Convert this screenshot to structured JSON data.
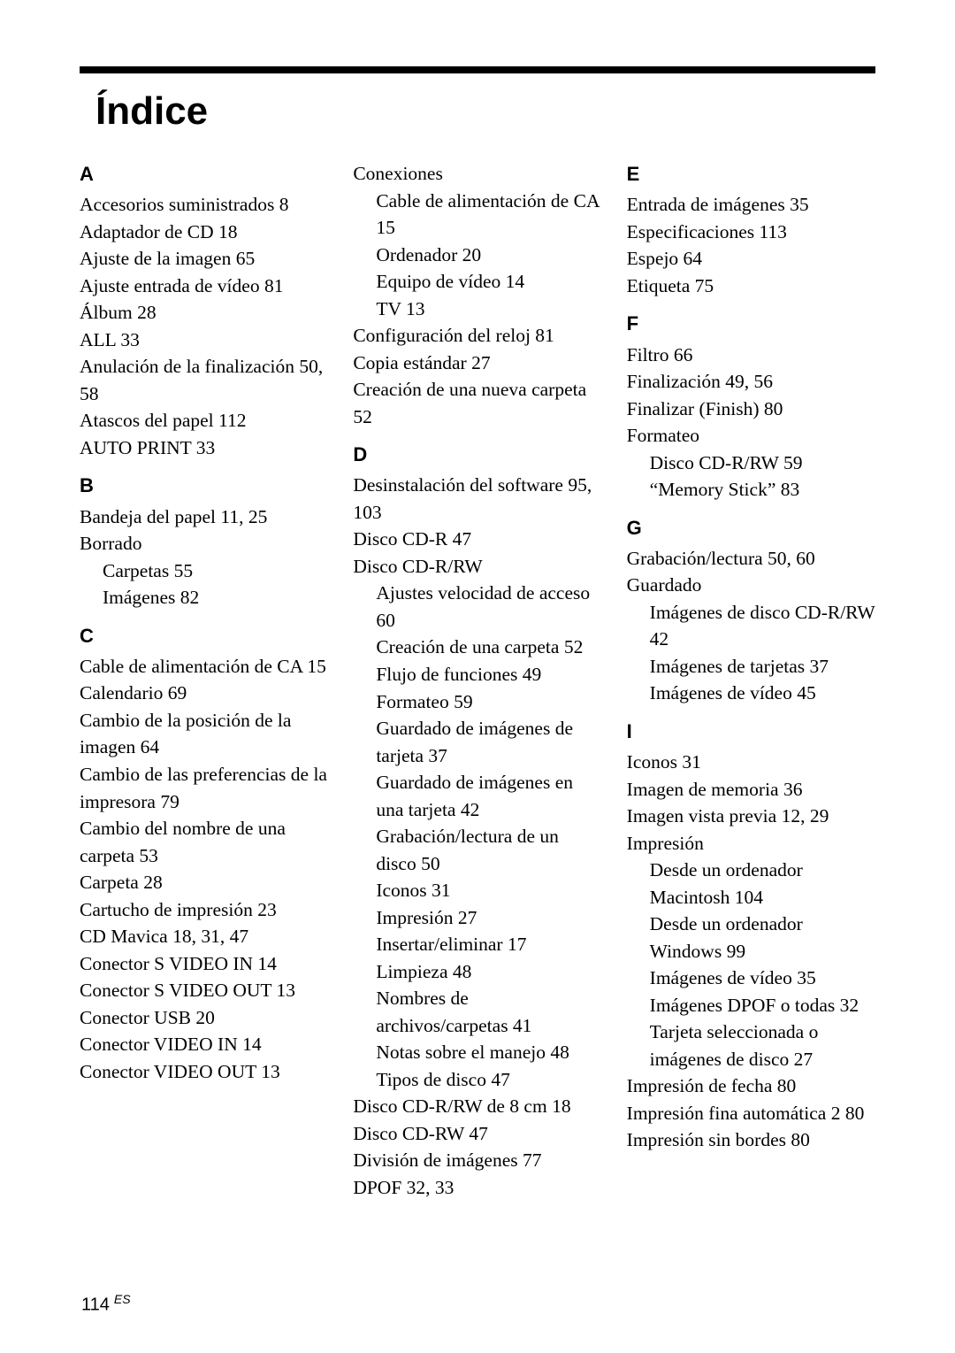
{
  "title": "Índice",
  "footer": {
    "page": "114",
    "lang": "ES"
  },
  "col1": {
    "A": {
      "letter": "A",
      "items": [
        {
          "t": "Accesorios suministrados  8"
        },
        {
          "t": "Adaptador de CD  18"
        },
        {
          "t": "Ajuste de la imagen  65"
        },
        {
          "t": "Ajuste entrada de vídeo  81"
        },
        {
          "t": "Álbum  28"
        },
        {
          "t": "ALL  33"
        },
        {
          "t": "Anulación de la finalización  50, 58"
        },
        {
          "t": "Atascos del papel  112"
        },
        {
          "t": "AUTO PRINT  33"
        }
      ]
    },
    "B": {
      "letter": "B",
      "items": [
        {
          "t": "Bandeja del papel  11, 25"
        },
        {
          "t": "Borrado"
        },
        {
          "t": "Carpetas  55",
          "sub": true
        },
        {
          "t": "Imágenes  82",
          "sub": true
        }
      ]
    },
    "C": {
      "letter": "C",
      "items": [
        {
          "t": "Cable de alimentación de CA  15"
        },
        {
          "t": "Calendario  69"
        },
        {
          "t": "Cambio de la posición de la imagen  64"
        },
        {
          "t": "Cambio de las preferencias de la impresora  79"
        },
        {
          "t": "Cambio del nombre de una carpeta  53"
        },
        {
          "t": "Carpeta  28"
        },
        {
          "t": "Cartucho de impresión  23"
        },
        {
          "t": "CD Mavica  18, 31, 47"
        },
        {
          "t": "Conector S VIDEO IN  14"
        },
        {
          "t": "Conector S VIDEO OUT  13"
        },
        {
          "t": "Conector USB  20"
        },
        {
          "t": "Conector VIDEO IN  14"
        },
        {
          "t": "Conector VIDEO OUT  13"
        }
      ]
    }
  },
  "col2": {
    "Ctop": {
      "items": [
        {
          "t": "Conexiones"
        },
        {
          "t": "Cable de alimentación de CA  15",
          "sub": true
        },
        {
          "t": "Ordenador  20",
          "sub": true
        },
        {
          "t": "Equipo de vídeo  14",
          "sub": true
        },
        {
          "t": "TV  13",
          "sub": true
        },
        {
          "t": "Configuración del reloj  81"
        },
        {
          "t": "Copia estándar  27"
        },
        {
          "t": "Creación de una nueva carpeta  52"
        }
      ]
    },
    "D": {
      "letter": "D",
      "items": [
        {
          "t": "Desinstalación del software  95, 103"
        },
        {
          "t": "Disco CD-R  47"
        },
        {
          "t": "Disco CD-R/RW"
        },
        {
          "t": "Ajustes velocidad de acceso  60",
          "sub": true
        },
        {
          "t": "Creación de una carpeta  52",
          "sub": true
        },
        {
          "t": "Flujo de funciones  49",
          "sub": true
        },
        {
          "t": "Formateo  59",
          "sub": true
        },
        {
          "t": "Guardado de imágenes de tarjeta  37",
          "sub": true
        },
        {
          "t": "Guardado de imágenes en una tarjeta  42",
          "sub": true
        },
        {
          "t": "Grabación/lectura de un disco  50",
          "sub": true
        },
        {
          "t": "Iconos  31",
          "sub": true
        },
        {
          "t": "Impresión  27",
          "sub": true
        },
        {
          "t": "Insertar/eliminar  17",
          "sub": true
        },
        {
          "t": "Limpieza  48",
          "sub": true
        },
        {
          "t": "Nombres de archivos/carpetas  41",
          "sub": true
        },
        {
          "t": "Notas sobre el manejo  48",
          "sub": true
        },
        {
          "t": "Tipos de disco  47",
          "sub": true
        },
        {
          "t": "Disco CD-R/RW de 8 cm  18"
        },
        {
          "t": "Disco CD-RW  47"
        },
        {
          "t": "División de imágenes  77"
        },
        {
          "t": "DPOF  32, 33"
        }
      ]
    }
  },
  "col3": {
    "E": {
      "letter": "E",
      "items": [
        {
          "t": "Entrada de imágenes  35"
        },
        {
          "t": "Especificaciones  113"
        },
        {
          "t": "Espejo  64"
        },
        {
          "t": "Etiqueta  75"
        }
      ]
    },
    "F": {
      "letter": "F",
      "items": [
        {
          "t": "Filtro  66"
        },
        {
          "t": "Finalización  49, 56"
        },
        {
          "t": "Finalizar (Finish)  80"
        },
        {
          "t": "Formateo"
        },
        {
          "t": "Disco CD-R/RW  59",
          "sub": true
        },
        {
          "t": "“Memory Stick”  83",
          "sub": true
        }
      ]
    },
    "G": {
      "letter": "G",
      "items": [
        {
          "t": "Grabación/lectura  50, 60"
        },
        {
          "t": "Guardado"
        },
        {
          "t": "Imágenes de disco CD-R/RW  42",
          "sub": true
        },
        {
          "t": "Imágenes de tarjetas  37",
          "sub": true
        },
        {
          "t": "Imágenes de vídeo  45",
          "sub": true
        }
      ]
    },
    "I": {
      "letter": "I",
      "items": [
        {
          "t": "Iconos  31"
        },
        {
          "t": "Imagen de memoria  36"
        },
        {
          "t": "Imagen vista previa  12, 29"
        },
        {
          "t": "Impresión"
        },
        {
          "t": "Desde un ordenador Macintosh  104",
          "sub": true
        },
        {
          "t": "Desde un ordenador Windows  99",
          "sub": true
        },
        {
          "t": "Imágenes de vídeo  35",
          "sub": true
        },
        {
          "t": "Imágenes DPOF o todas  32",
          "sub": true
        },
        {
          "t": "Tarjeta seleccionada o imágenes de disco  27",
          "sub": true
        },
        {
          "t": "Impresión de fecha  80"
        },
        {
          "t": "Impresión fina automática 2  80"
        },
        {
          "t": "Impresión sin bordes  80"
        }
      ]
    }
  }
}
